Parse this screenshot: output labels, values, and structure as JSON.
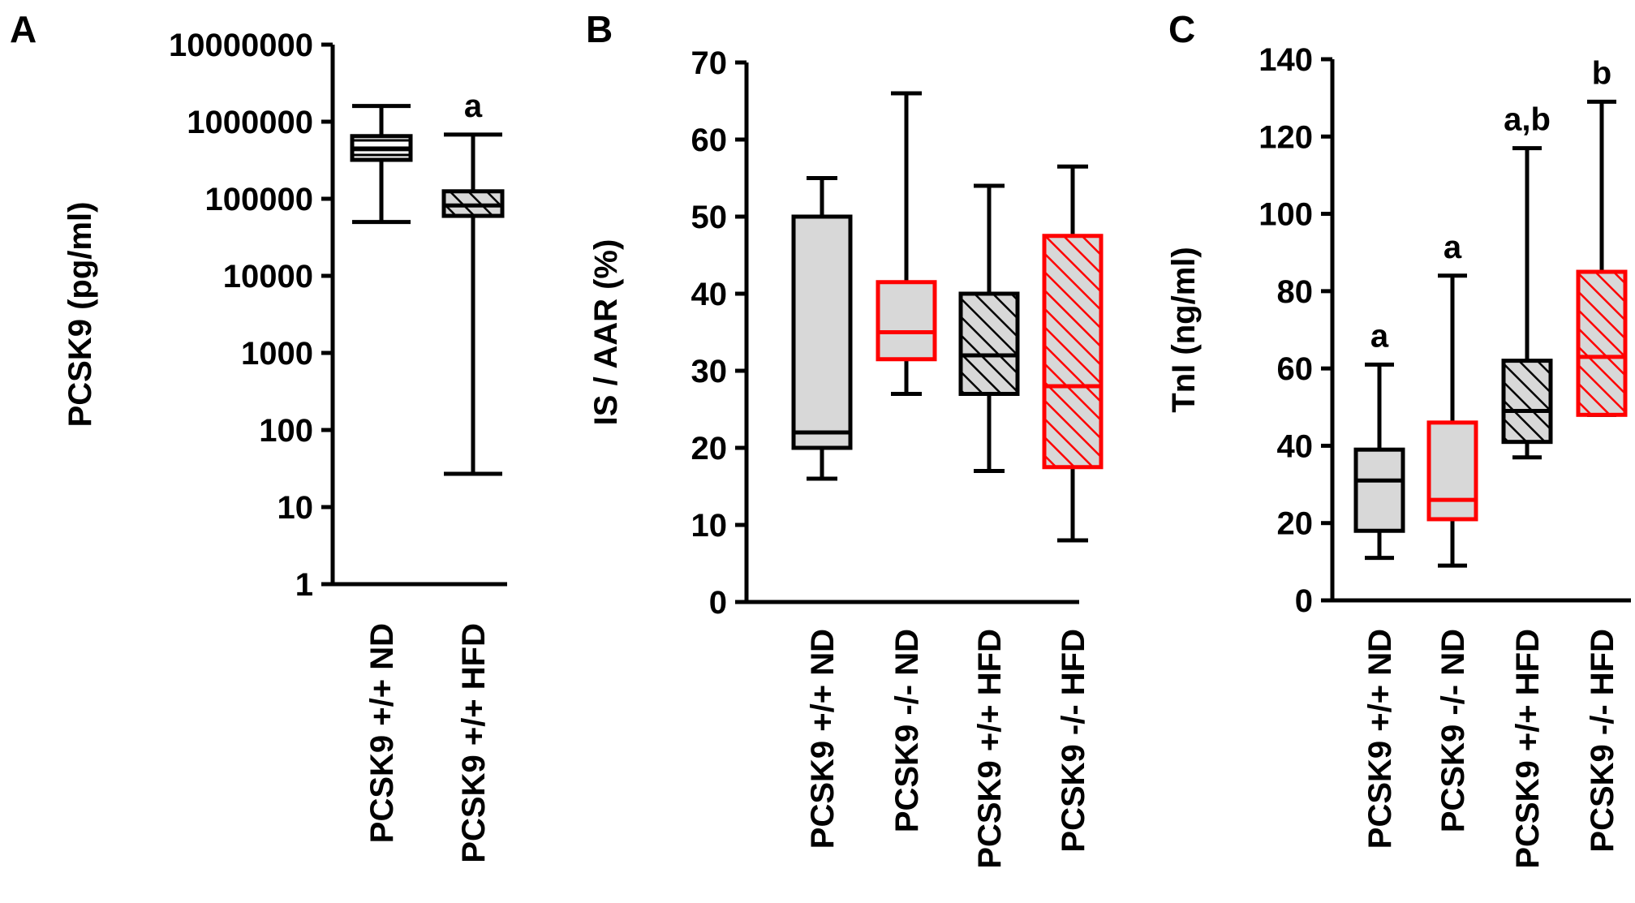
{
  "chart_data": [
    {
      "panel": "A",
      "type": "boxplot",
      "yscale": "log",
      "ylabel": "PCSK9 (pg/ml)",
      "ylim": [
        1,
        10000000
      ],
      "yticks": [
        "10000000",
        "1000000",
        "100000",
        "10000",
        "1000",
        "100",
        "10",
        "1"
      ],
      "categories": [
        "PCSK9 +/+ ND",
        "PCSK9 +/+ HFD"
      ],
      "boxes": [
        {
          "min": 50000,
          "q1": 320000,
          "median": 440000,
          "q3": 650000,
          "max": 1600000,
          "color": "#000000",
          "pattern": "horizontal",
          "label": ""
        },
        {
          "min": 27,
          "q1": 60000,
          "median": 82000,
          "q3": 125000,
          "max": 680000,
          "color": "#000000",
          "pattern": "hatch",
          "label": "a"
        }
      ]
    },
    {
      "panel": "B",
      "type": "boxplot",
      "yscale": "linear",
      "ylabel": "IS / AAR (%)",
      "ylim": [
        0,
        70
      ],
      "yticks": [
        "70",
        "60",
        "50",
        "40",
        "30",
        "20",
        "10",
        "0"
      ],
      "categories": [
        "PCSK9 +/+ ND",
        "PCSK9 -/- ND",
        "PCSK9 +/+ HFD",
        "PCSK9 -/- HFD"
      ],
      "boxes": [
        {
          "min": 16,
          "q1": 20,
          "median": 22,
          "q3": 50,
          "max": 55,
          "color": "#000000",
          "pattern": "solid",
          "label": ""
        },
        {
          "min": 27,
          "q1": 31.5,
          "median": 35,
          "q3": 41.5,
          "max": 66,
          "color": "#ff0000",
          "pattern": "solid",
          "label": ""
        },
        {
          "min": 17,
          "q1": 27,
          "median": 32,
          "q3": 40,
          "max": 54,
          "color": "#000000",
          "pattern": "hatch",
          "label": ""
        },
        {
          "min": 8,
          "q1": 17.5,
          "median": 28,
          "q3": 47.5,
          "max": 56.5,
          "color": "#ff0000",
          "pattern": "hatch",
          "label": ""
        }
      ]
    },
    {
      "panel": "C",
      "type": "boxplot",
      "yscale": "linear",
      "ylabel": "TnI (ng/ml)",
      "ylim": [
        0,
        140
      ],
      "yticks": [
        "140",
        "120",
        "100",
        "80",
        "60",
        "40",
        "20",
        "0"
      ],
      "categories": [
        "PCSK9 +/+ ND",
        "PCSK9 -/- ND",
        "PCSK9 +/+ HFD",
        "PCSK9 -/- HFD"
      ],
      "boxes": [
        {
          "min": 11,
          "q1": 18,
          "median": 31,
          "q3": 39,
          "max": 61,
          "color": "#000000",
          "pattern": "solid",
          "label": "a"
        },
        {
          "min": 9,
          "q1": 21,
          "median": 26,
          "q3": 46,
          "max": 84,
          "color": "#ff0000",
          "pattern": "solid",
          "label": "a"
        },
        {
          "min": 37,
          "q1": 41,
          "median": 49,
          "q3": 62,
          "max": 117,
          "color": "#000000",
          "pattern": "hatch",
          "label": "a,b"
        },
        {
          "min": 48,
          "q1": 48,
          "median": 63,
          "q3": 85,
          "max": 129,
          "color": "#ff0000",
          "pattern": "hatch",
          "label": "b"
        }
      ]
    }
  ]
}
